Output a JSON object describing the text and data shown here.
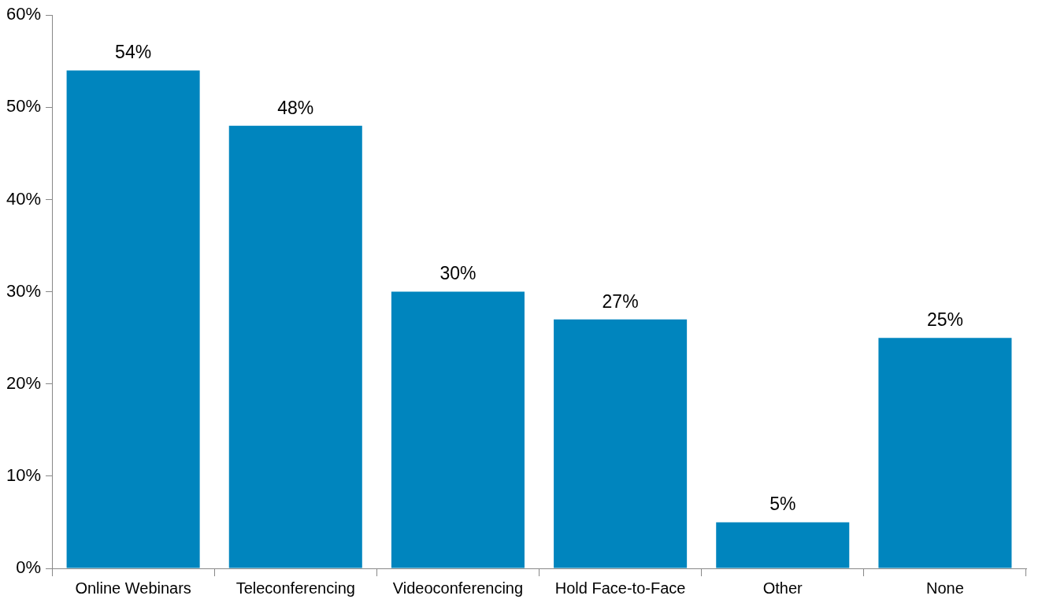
{
  "chart_data": {
    "type": "bar",
    "categories": [
      "Online Webinars",
      "Teleconferencing",
      "Videoconferencing",
      "Hold Face-to-Face",
      "Other",
      "None"
    ],
    "values": [
      54,
      48,
      30,
      27,
      5,
      25
    ],
    "value_labels": [
      "54%",
      "48%",
      "30%",
      "27%",
      "5%",
      "25%"
    ],
    "color": "#0085be",
    "ylim": [
      0,
      60
    ],
    "yticks": [
      {
        "value": 0,
        "label": "0%"
      },
      {
        "value": 10,
        "label": "10%"
      },
      {
        "value": 20,
        "label": "20%"
      },
      {
        "value": 30,
        "label": "30%"
      },
      {
        "value": 40,
        "label": "40%"
      },
      {
        "value": 50,
        "label": "50%"
      },
      {
        "value": 60,
        "label": "60%"
      }
    ],
    "grid": false,
    "legend": false
  }
}
